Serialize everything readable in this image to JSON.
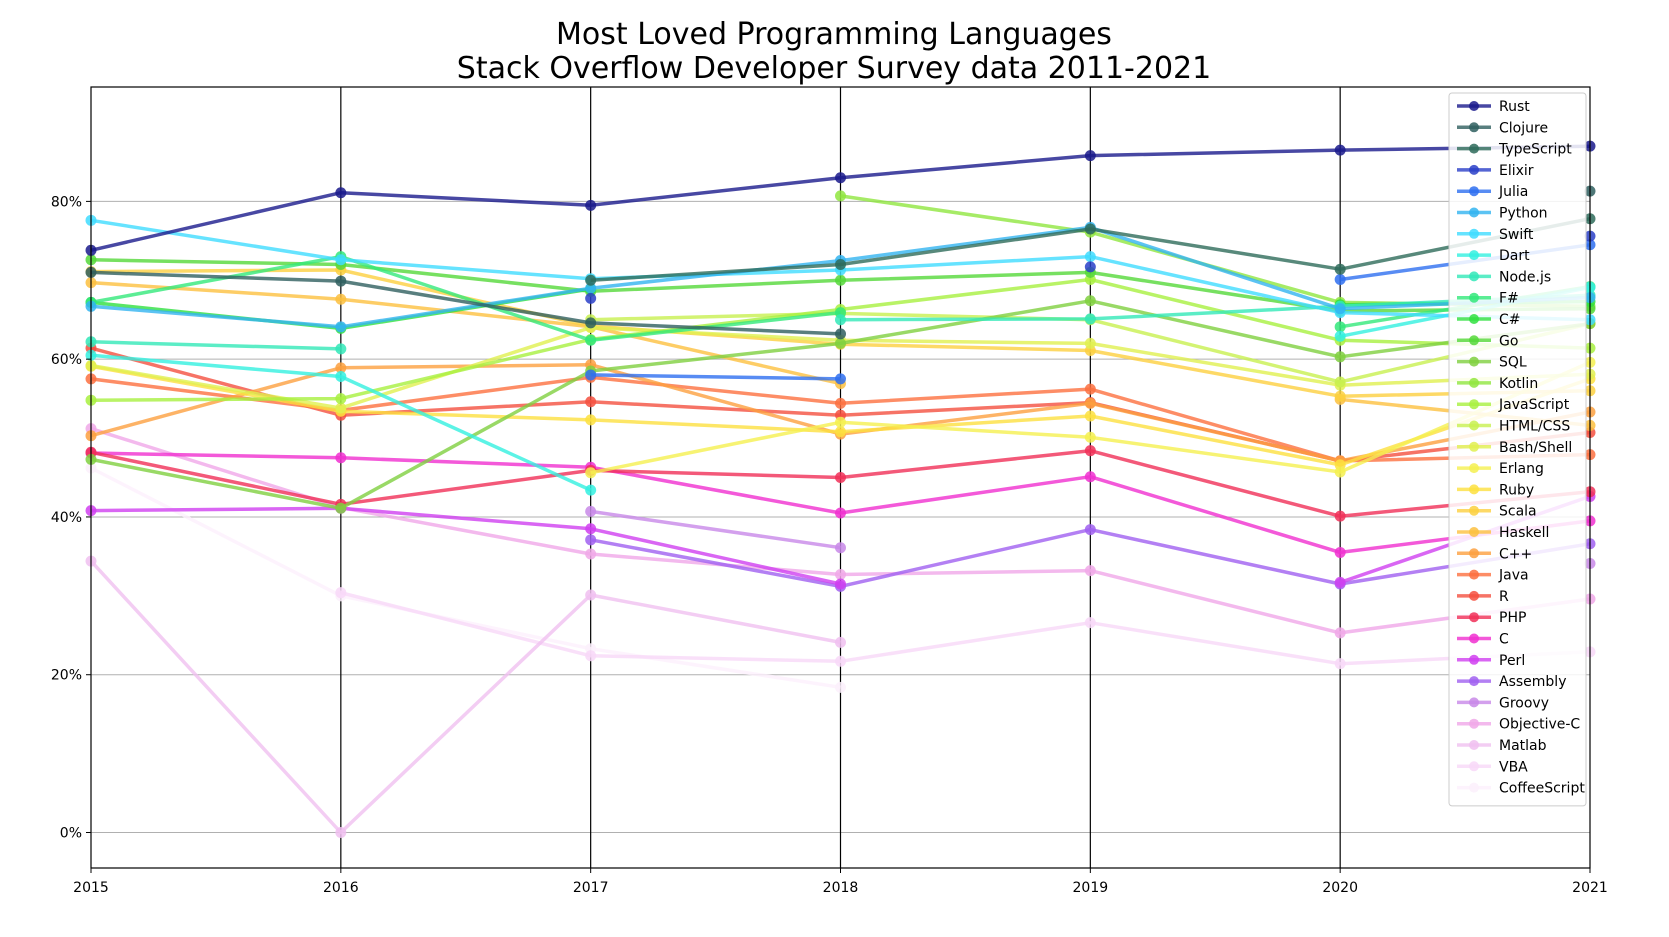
{
  "chart_data": {
    "type": "line",
    "title": [
      "Most Loved Programming Languages",
      "Stack Overflow Developer Survey data 2011-2021"
    ],
    "xlabel": "",
    "ylabel": "",
    "x": [
      2015,
      2016,
      2017,
      2018,
      2019,
      2020,
      2021
    ],
    "x_tick_labels": [
      "2015",
      "2016",
      "2017",
      "2018",
      "2019",
      "2020",
      "2021"
    ],
    "ylim": [
      -0.045,
      0.945
    ],
    "y_ticks": [
      0,
      0.2,
      0.4,
      0.6,
      0.8
    ],
    "y_tick_labels": [
      "0%",
      "20%",
      "40%",
      "60%",
      "80%"
    ],
    "grid": "horizontal",
    "vertical_year_lines": true,
    "legend_placement": "top-right",
    "series": [
      {
        "name": "Rust",
        "color": "#1a1a8c",
        "values": [
          0.738,
          0.811,
          0.795,
          0.83,
          0.858,
          0.865,
          0.87
        ]
      },
      {
        "name": "Clojure",
        "color": "#2f5f5f",
        "values": [
          0.71,
          0.699,
          0.646,
          0.632,
          null,
          null,
          0.813
        ]
      },
      {
        "name": "TypeScript",
        "color": "#2e6b5a",
        "values": [
          null,
          null,
          0.7,
          0.72,
          0.765,
          0.714,
          0.778
        ]
      },
      {
        "name": "Elixir",
        "color": "#2a3fc8",
        "values": [
          null,
          null,
          0.677,
          null,
          0.717,
          null,
          0.756
        ]
      },
      {
        "name": "Julia",
        "color": "#2e6ff0",
        "values": [
          null,
          null,
          0.58,
          0.575,
          null,
          0.701,
          0.745
        ]
      },
      {
        "name": "Python",
        "color": "#33b4f0",
        "values": [
          0.667,
          0.641,
          0.69,
          0.725,
          0.767,
          0.664,
          0.678
        ]
      },
      {
        "name": "Swift",
        "color": "#40dcff",
        "values": [
          0.776,
          0.726,
          0.702,
          0.713,
          0.73,
          0.659,
          0.65
        ]
      },
      {
        "name": "Dart",
        "color": "#33f0e0",
        "values": [
          0.605,
          0.578,
          0.434,
          null,
          null,
          0.629,
          0.691
        ]
      },
      {
        "name": "Node.js",
        "color": "#33e8b8",
        "values": [
          0.622,
          0.613,
          null,
          0.65,
          0.651,
          0.667,
          0.681
        ]
      },
      {
        "name": "F#",
        "color": "#33e87a",
        "values": [
          0.672,
          0.73,
          0.624,
          0.659,
          null,
          0.641,
          0.692
        ]
      },
      {
        "name": "C#",
        "color": "#30e040",
        "values": [
          0.672,
          0.639,
          0.689,
          null,
          null,
          0.669,
          0.673
        ]
      },
      {
        "name": "Go",
        "color": "#55d83a",
        "values": [
          0.726,
          0.72,
          0.686,
          0.7,
          0.71,
          0.661,
          0.664
        ]
      },
      {
        "name": "SQL",
        "color": "#80d040",
        "values": [
          0.473,
          0.411,
          0.585,
          0.62,
          0.674,
          0.603,
          0.645
        ]
      },
      {
        "name": "Kotlin",
        "color": "#90e640",
        "values": [
          null,
          null,
          null,
          0.807,
          0.761,
          0.672,
          0.667
        ]
      },
      {
        "name": "JavaScript",
        "color": "#a8f040",
        "values": [
          0.548,
          0.55,
          0.625,
          0.663,
          0.701,
          0.624,
          0.614
        ]
      },
      {
        "name": "HTML/CSS",
        "color": "#c8f050",
        "values": [
          null,
          null,
          0.65,
          0.658,
          0.65,
          0.571,
          0.645
        ]
      },
      {
        "name": "Bash/Shell",
        "color": "#e0f050",
        "values": [
          0.592,
          0.538,
          0.64,
          0.624,
          0.62,
          0.567,
          0.581
        ]
      },
      {
        "name": "Erlang",
        "color": "#f5f050",
        "values": [
          null,
          null,
          0.456,
          0.52,
          0.501,
          0.457,
          0.596
        ]
      },
      {
        "name": "Ruby",
        "color": "#fde040",
        "values": [
          0.591,
          0.534,
          0.523,
          0.508,
          0.528,
          0.466,
          0.575
        ]
      },
      {
        "name": "Scala",
        "color": "#fcd040",
        "values": [
          0.711,
          0.713,
          0.642,
          0.619,
          0.611,
          0.553,
          0.56
        ]
      },
      {
        "name": "Haskell",
        "color": "#fcc040",
        "values": [
          0.697,
          0.676,
          0.641,
          0.569,
          null,
          0.549,
          0.516
        ]
      },
      {
        "name": "C++",
        "color": "#fca040",
        "values": [
          0.503,
          0.589,
          0.593,
          0.505,
          0.544,
          0.471,
          0.533
        ]
      },
      {
        "name": "Java",
        "color": "#fc7040",
        "values": [
          0.575,
          0.535,
          0.577,
          0.544,
          0.562,
          0.471,
          0.479
        ]
      },
      {
        "name": "R",
        "color": "#f45040",
        "values": [
          0.614,
          0.529,
          0.546,
          0.529,
          0.545,
          0.471,
          0.507
        ]
      },
      {
        "name": "PHP",
        "color": "#f03058",
        "values": [
          0.482,
          0.416,
          0.459,
          0.45,
          0.484,
          0.401,
          0.432
        ]
      },
      {
        "name": "C",
        "color": "#f030d0",
        "values": [
          0.481,
          0.475,
          0.463,
          0.405,
          0.451,
          0.355,
          0.395
        ]
      },
      {
        "name": "Perl",
        "color": "#d040f0",
        "values": [
          0.408,
          0.411,
          0.385,
          0.315,
          null,
          0.317,
          0.426
        ]
      },
      {
        "name": "Assembly",
        "color": "#a060f0",
        "values": [
          null,
          null,
          0.371,
          0.312,
          0.384,
          0.315,
          0.366
        ]
      },
      {
        "name": "Groovy",
        "color": "#c888e8",
        "values": [
          null,
          null,
          0.407,
          0.361,
          null,
          null,
          0.341
        ]
      },
      {
        "name": "Objective-C",
        "color": "#f0a8e8",
        "values": [
          0.512,
          0.412,
          0.353,
          0.327,
          0.332,
          0.253,
          0.296
        ]
      },
      {
        "name": "Matlab",
        "color": "#f0c0f0",
        "values": [
          0.344,
          0.0,
          0.301,
          0.241,
          null,
          null,
          null
        ]
      },
      {
        "name": "VBA",
        "color": "#f8d8f8",
        "values": [
          null,
          0.304,
          0.224,
          0.217,
          0.266,
          0.214,
          0.229
        ]
      },
      {
        "name": "CoffeeScript",
        "color": "#fcf0fc",
        "values": [
          0.462,
          0.3,
          0.233,
          0.184,
          null,
          null,
          null
        ]
      }
    ]
  }
}
